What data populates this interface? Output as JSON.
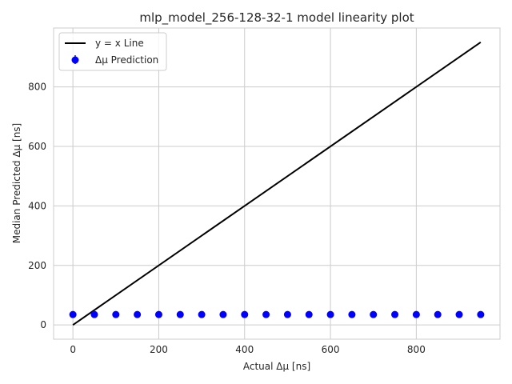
{
  "chart_data": {
    "type": "scatter",
    "title": "mlp_model_256-128-32-1 model linearity plot",
    "xlabel": "Actual Δμ [ns]",
    "ylabel": "Median Predicted Δμ [ns]",
    "xlim": [
      -45,
      995
    ],
    "ylim": [
      -48,
      998
    ],
    "xticks": [
      0,
      200,
      400,
      600,
      800
    ],
    "yticks": [
      0,
      200,
      400,
      600,
      800
    ],
    "grid": true,
    "legend_position": "top-left",
    "series": [
      {
        "name": "y = x Line",
        "kind": "line",
        "color": "#000000",
        "x": [
          0,
          950
        ],
        "y": [
          0,
          950
        ]
      },
      {
        "name": "Δμ Prediction",
        "kind": "errorbar-scatter",
        "color": "#0000ff",
        "x": [
          0,
          50,
          100,
          150,
          200,
          250,
          300,
          350,
          400,
          450,
          500,
          550,
          600,
          650,
          700,
          750,
          800,
          850,
          900,
          950
        ],
        "y": [
          35,
          35,
          35,
          35,
          35,
          35,
          35,
          35,
          35,
          35,
          35,
          35,
          35,
          35,
          35,
          35,
          35,
          35,
          35,
          35
        ]
      }
    ]
  }
}
